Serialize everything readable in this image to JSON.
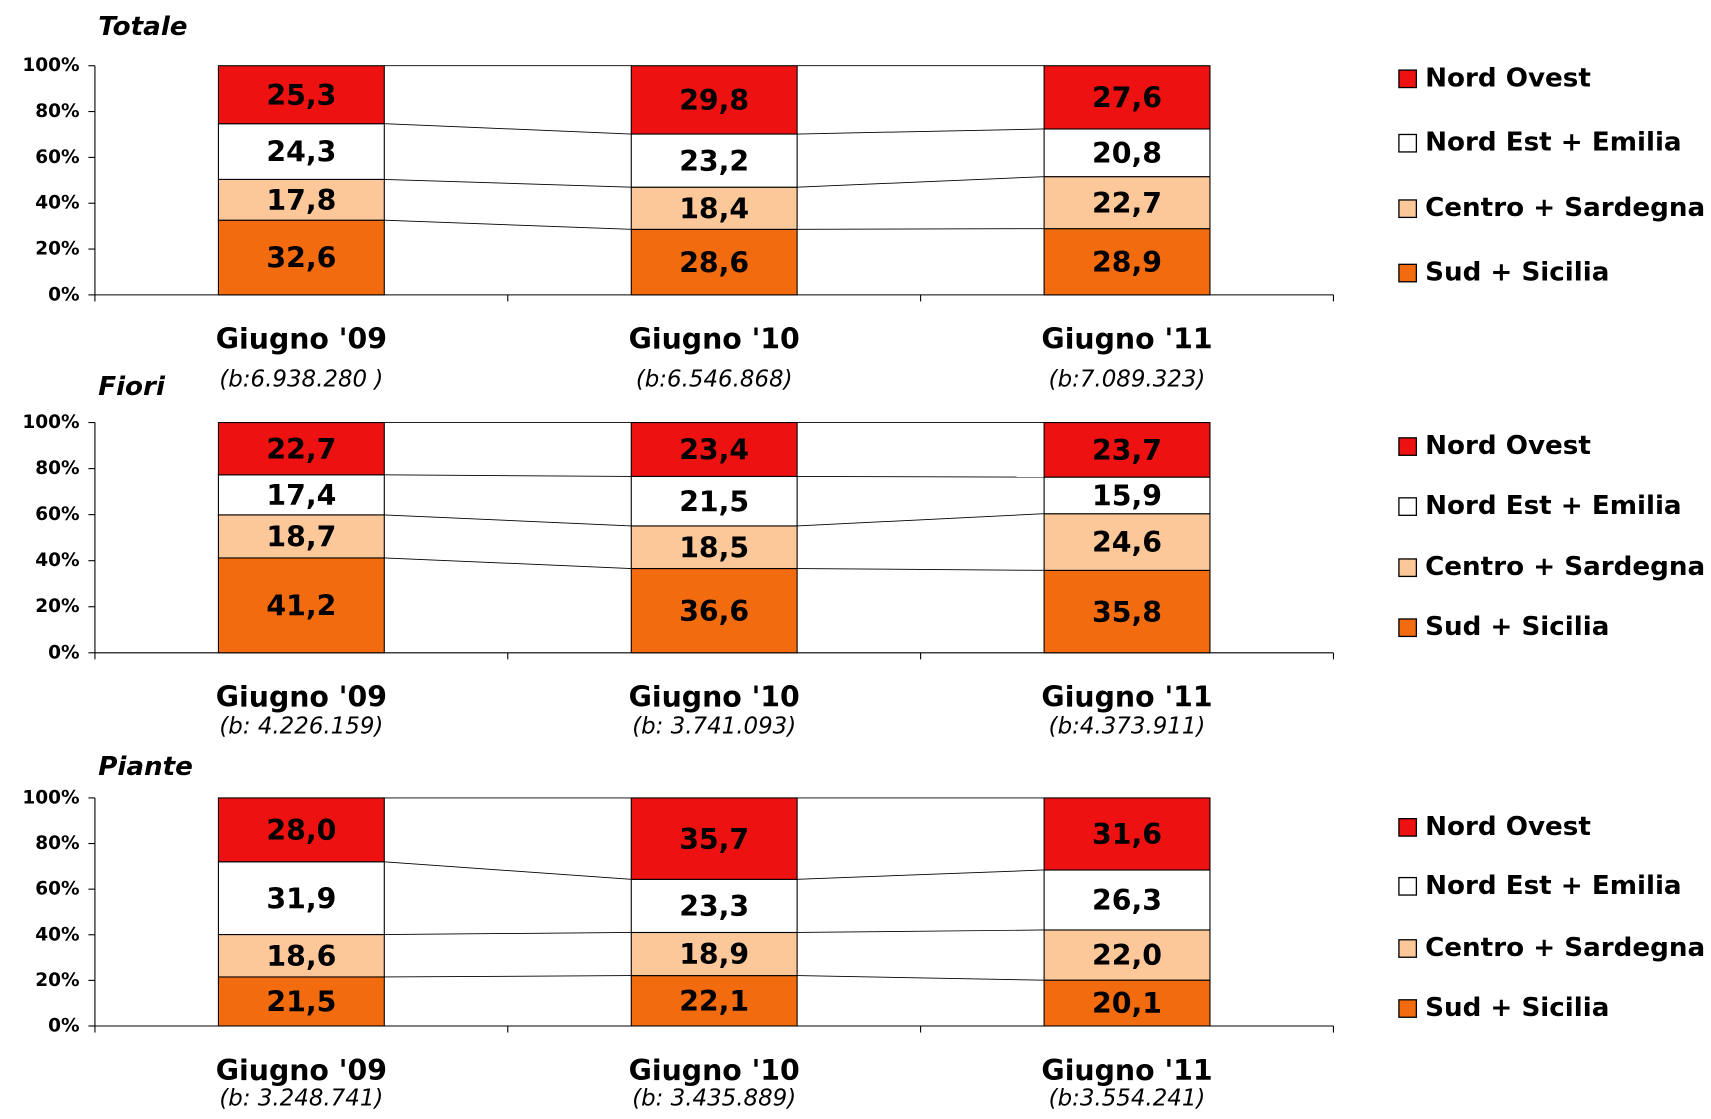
{
  "chart_data": [
    {
      "type": "stacked-bar",
      "title": "Totale",
      "categories": [
        "Giugno '09",
        "Giugno '10",
        "Giugno '11"
      ],
      "category_notes": [
        "(b:6.938.280 )",
        "(b:6.546.868)",
        "(b:7.089.323)"
      ],
      "ylim": [
        0,
        100
      ],
      "yticks": [
        {
          "value": 0,
          "label": "0%"
        },
        {
          "value": 20,
          "label": "20%"
        },
        {
          "value": 40,
          "label": "40%"
        },
        {
          "value": 60,
          "label": "60%"
        },
        {
          "value": 80,
          "label": "80%"
        },
        {
          "value": 100,
          "label": "100%"
        }
      ],
      "series": [
        {
          "name": "Nord Ovest",
          "color": "#ee1111",
          "values": [
            25.3,
            29.8,
            27.6
          ],
          "value_labels": [
            "25,3",
            "29,8",
            "27,6"
          ]
        },
        {
          "name": "Nord Est + Emilia",
          "color": "#ffffff",
          "values": [
            24.3,
            23.2,
            20.8
          ],
          "value_labels": [
            "24,3",
            "23,2",
            "20,8"
          ]
        },
        {
          "name": "Centro + Sardegna",
          "color": "#fcc89a",
          "values": [
            17.8,
            18.4,
            22.7
          ],
          "value_labels": [
            "17,8",
            "18,4",
            "22,7"
          ]
        },
        {
          "name": "Sud + Sicilia",
          "color": "#f26b0e",
          "values": [
            32.6,
            28.6,
            28.9
          ],
          "value_labels": [
            "32,6",
            "28,6",
            "28,9"
          ]
        }
      ]
    },
    {
      "type": "stacked-bar",
      "title": "Fiori",
      "categories": [
        "Giugno '09",
        "Giugno '10",
        "Giugno '11"
      ],
      "category_notes": [
        "(b: 4.226.159)",
        "(b: 3.741.093)",
        "(b:4.373.911)"
      ],
      "ylim": [
        0,
        100
      ],
      "yticks": [
        {
          "value": 0,
          "label": "0%"
        },
        {
          "value": 20,
          "label": "20%"
        },
        {
          "value": 40,
          "label": "40%"
        },
        {
          "value": 60,
          "label": "60%"
        },
        {
          "value": 80,
          "label": "80%"
        },
        {
          "value": 100,
          "label": "100%"
        }
      ],
      "series": [
        {
          "name": "Nord Ovest",
          "color": "#ee1111",
          "values": [
            22.7,
            23.4,
            23.7
          ],
          "value_labels": [
            "22,7",
            "23,4",
            "23,7"
          ]
        },
        {
          "name": "Nord Est + Emilia",
          "color": "#ffffff",
          "values": [
            17.4,
            21.5,
            15.9
          ],
          "value_labels": [
            "17,4",
            "21,5",
            "15,9"
          ]
        },
        {
          "name": "Centro + Sardegna",
          "color": "#fcc89a",
          "values": [
            18.7,
            18.5,
            24.6
          ],
          "value_labels": [
            "18,7",
            "18,5",
            "24,6"
          ]
        },
        {
          "name": "Sud + Sicilia",
          "color": "#f26b0e",
          "values": [
            41.2,
            36.6,
            35.8
          ],
          "value_labels": [
            "41,2",
            "36,6",
            "35,8"
          ]
        }
      ]
    },
    {
      "type": "stacked-bar",
      "title": "Piante",
      "categories": [
        "Giugno '09",
        "Giugno '10",
        "Giugno '11"
      ],
      "category_notes": [
        "(b: 3.248.741)",
        "(b: 3.435.889)",
        "(b:3.554.241)"
      ],
      "ylim": [
        0,
        100
      ],
      "yticks": [
        {
          "value": 0,
          "label": "0%"
        },
        {
          "value": 20,
          "label": "20%"
        },
        {
          "value": 40,
          "label": "40%"
        },
        {
          "value": 60,
          "label": "60%"
        },
        {
          "value": 80,
          "label": "80%"
        },
        {
          "value": 100,
          "label": "100%"
        }
      ],
      "series": [
        {
          "name": "Nord Ovest",
          "color": "#ee1111",
          "values": [
            28.0,
            35.7,
            31.6
          ],
          "value_labels": [
            "28,0",
            "35,7",
            "31,6"
          ]
        },
        {
          "name": "Nord Est + Emilia",
          "color": "#ffffff",
          "values": [
            31.9,
            23.3,
            26.3
          ],
          "value_labels": [
            "31,9",
            "23,3",
            "26,3"
          ]
        },
        {
          "name": "Centro + Sardegna",
          "color": "#fcc89a",
          "values": [
            18.6,
            18.9,
            22.0
          ],
          "value_labels": [
            "18,6",
            "18,9",
            "22,0"
          ]
        },
        {
          "name": "Sud + Sicilia",
          "color": "#f26b0e",
          "values": [
            21.5,
            22.1,
            20.1
          ],
          "value_labels": [
            "21,5",
            "22,1",
            "20,1"
          ]
        }
      ]
    }
  ]
}
